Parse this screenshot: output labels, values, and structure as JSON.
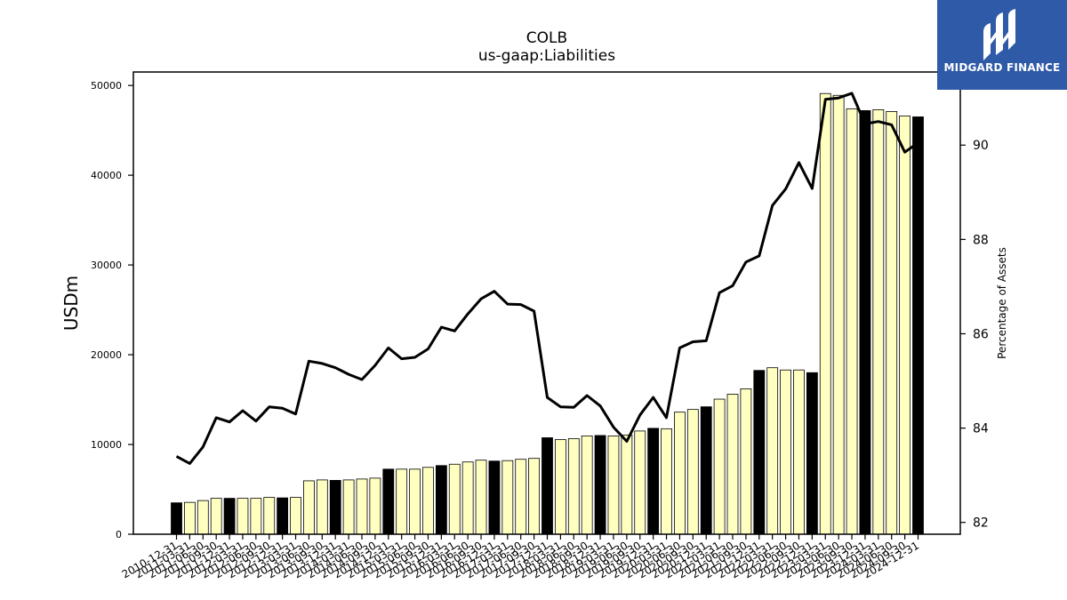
{
  "logo": {
    "text": "MIDGARD FINANCE",
    "bg_color": "#2f5aa8"
  },
  "chart_data": {
    "type": "bar",
    "title": "COLB",
    "subtitle": "us-gaap:Liabilities",
    "ylabel": "USDm",
    "y2label": "Percentage of Assets",
    "ylim": [
      0,
      51500
    ],
    "y2lim": [
      81.75,
      91.55
    ],
    "yticks": [
      0,
      10000,
      20000,
      30000,
      40000,
      50000
    ],
    "y2ticks": [
      82,
      84,
      86,
      88,
      90
    ],
    "grid": false,
    "colors": {
      "bar_q4": "#000000",
      "bar_other": "#ffffc0",
      "line": "#000000"
    },
    "categories": [
      "2010-12-31",
      "2011-03-31",
      "2011-06-30",
      "2011-09-30",
      "2011-12-31",
      "2012-03-31",
      "2012-06-30",
      "2012-09-30",
      "2012-12-31",
      "2013-03-31",
      "2013-06-30",
      "2013-09-30",
      "2013-12-31",
      "2014-03-31",
      "2014-06-30",
      "2014-09-30",
      "2014-12-31",
      "2015-03-31",
      "2015-06-30",
      "2015-09-30",
      "2015-12-31",
      "2016-03-31",
      "2016-06-30",
      "2016-09-30",
      "2016-12-31",
      "2017-03-31",
      "2017-06-30",
      "2017-09-30",
      "2017-12-31",
      "2018-03-31",
      "2018-06-30",
      "2018-09-30",
      "2018-12-31",
      "2019-03-31",
      "2019-06-30",
      "2019-09-30",
      "2019-12-31",
      "2020-03-31",
      "2020-06-30",
      "2020-09-30",
      "2020-12-31",
      "2021-03-31",
      "2021-06-30",
      "2021-09-30",
      "2021-12-31",
      "2022-03-31",
      "2022-06-30",
      "2022-09-30",
      "2022-12-31",
      "2023-03-31",
      "2023-06-30",
      "2023-09-30",
      "2023-12-31",
      "2024-03-31",
      "2024-06-30",
      "2024-09-30",
      "2024-12-31"
    ],
    "series": [
      {
        "kind": "bar",
        "axis": "left",
        "values": [
          3500,
          3550,
          3750,
          4000,
          4000,
          4000,
          4000,
          4100,
          4050,
          4100,
          5950,
          6050,
          6000,
          6050,
          6150,
          6250,
          7250,
          7250,
          7250,
          7450,
          7650,
          7800,
          8050,
          8250,
          8150,
          8200,
          8350,
          8450,
          10750,
          10550,
          10650,
          10950,
          11000,
          10950,
          11050,
          11500,
          11800,
          11750,
          13600,
          13900,
          14200,
          15050,
          15600,
          16200,
          18250,
          18550,
          18300,
          18300,
          18000,
          49100,
          48900,
          47400,
          47200,
          47300,
          47100,
          46600,
          46500
        ]
      },
      {
        "kind": "line",
        "axis": "right",
        "values": [
          83.4,
          83.25,
          83.6,
          84.22,
          84.13,
          84.37,
          84.15,
          84.45,
          84.42,
          84.3,
          85.42,
          85.37,
          85.28,
          85.14,
          85.03,
          85.33,
          85.7,
          85.47,
          85.5,
          85.68,
          86.14,
          86.06,
          86.42,
          86.74,
          86.9,
          86.63,
          86.62,
          86.48,
          84.65,
          84.45,
          84.44,
          84.69,
          84.47,
          84.02,
          83.72,
          84.28,
          84.65,
          84.22,
          85.7,
          85.83,
          85.85,
          86.87,
          87.02,
          87.52,
          87.65,
          88.72,
          89.07,
          89.63,
          89.08,
          90.97,
          91.0,
          91.1,
          90.45,
          90.5,
          90.43,
          89.85,
          90.05
        ]
      }
    ]
  }
}
